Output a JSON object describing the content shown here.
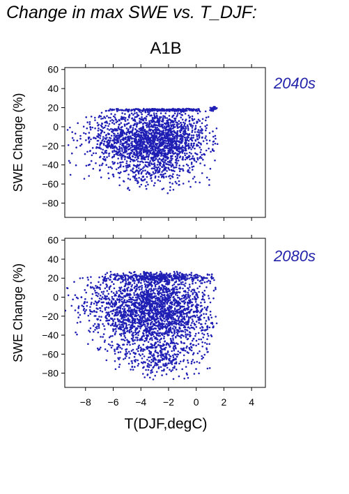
{
  "title": "Change in max SWE vs. T_DJF:",
  "scenario": "A1B",
  "xlabel": "T(DJF,degC)",
  "colors": {
    "points": "#1f1fb5",
    "label": "#2222aa"
  },
  "chart_data": [
    {
      "type": "scatter",
      "period": "2040s",
      "ylabel": "SWE Change (%)",
      "xlim": [
        -9.5,
        5
      ],
      "ylim": [
        -95,
        62
      ],
      "xticks": [
        -8,
        -6,
        -4,
        -2,
        0,
        2,
        4
      ],
      "yticks": [
        60,
        40,
        20,
        0,
        -20,
        -40,
        -60,
        -80
      ],
      "grid": false,
      "cloud": [
        {
          "x": -3,
          "y": -15,
          "sx": 1.9,
          "sy": 16,
          "n": 1900,
          "xmin": -7.2,
          "xmax": 1.6,
          "ymin": -68,
          "ymax": 18
        },
        {
          "x": -7,
          "y": -10,
          "sx": 1.4,
          "sy": 18,
          "n": 160,
          "xmin": -9.4,
          "xmax": 1.6,
          "ymin": -55,
          "ymax": 12
        },
        {
          "x": -2,
          "y": 17.5,
          "sx": 2.4,
          "sy": 0.8,
          "n": 260,
          "xmin": -6.8,
          "xmax": 0.3,
          "ymin": 15,
          "ymax": 19
        },
        {
          "x": 1.2,
          "y": 19,
          "sx": 0.15,
          "sy": 1,
          "n": 30,
          "xmin": 0.8,
          "xmax": 1.5,
          "ymin": 16,
          "ymax": 21
        },
        {
          "x": -3,
          "y": -50,
          "sx": 1.8,
          "sy": 8,
          "n": 120,
          "xmin": -6.5,
          "xmax": 1.2,
          "ymin": -72,
          "ymax": -40
        }
      ]
    },
    {
      "type": "scatter",
      "period": "2080s",
      "ylabel": "SWE Change (%)",
      "xlim": [
        -9.5,
        5
      ],
      "ylim": [
        -95,
        62
      ],
      "xticks": [
        -8,
        -6,
        -4,
        -2,
        0,
        2,
        4
      ],
      "yticks": [
        60,
        40,
        20,
        0,
        -20,
        -40,
        -60,
        -80
      ],
      "grid": false,
      "cloud": [
        {
          "x": -3,
          "y": -15,
          "sx": 2.0,
          "sy": 22,
          "n": 2300,
          "xmin": -7.5,
          "xmax": 1.5,
          "ymin": -88,
          "ymax": 27
        },
        {
          "x": -7.5,
          "y": -5,
          "sx": 1.2,
          "sy": 18,
          "n": 150,
          "xmin": -9.5,
          "xmax": 1.5,
          "ymin": -52,
          "ymax": 22
        },
        {
          "x": -3,
          "y": 21,
          "sx": 2.2,
          "sy": 2,
          "n": 300,
          "xmin": -6.8,
          "xmax": 1.4,
          "ymin": 16,
          "ymax": 28
        },
        {
          "x": -2.5,
          "y": -65,
          "sx": 1.6,
          "sy": 9,
          "n": 220,
          "xmin": -6.5,
          "xmax": 1.3,
          "ymin": -88,
          "ymax": -45
        }
      ]
    }
  ]
}
